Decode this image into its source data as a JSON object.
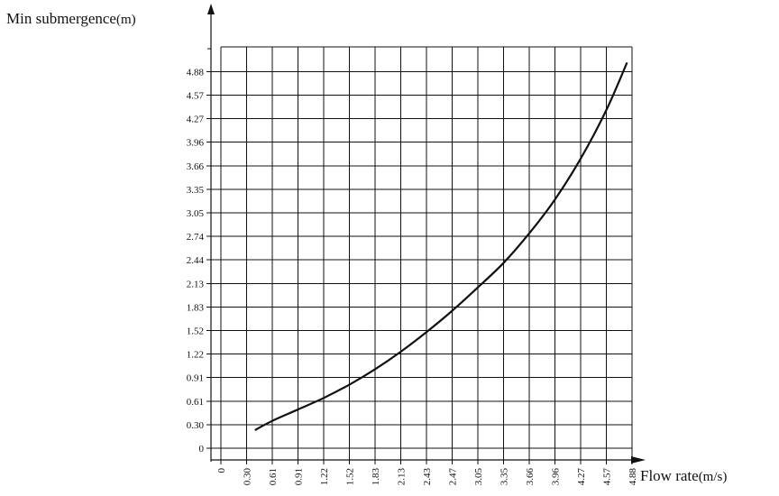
{
  "chart_data": {
    "type": "line",
    "title": "",
    "xlabel": "Flow rate",
    "xunit": "(m/s)",
    "ylabel": "Min submergence",
    "yunit": "(m)",
    "x_ticks": [
      "0",
      "0.30",
      "0.61",
      "0.91",
      "1.22",
      "1.52",
      "1.83",
      "2.13",
      "2.43",
      "2.47",
      "3.05",
      "3.35",
      "3.66",
      "3.96",
      "4.27",
      "4.57",
      "4.88"
    ],
    "y_ticks": [
      "0",
      "0.30",
      "0.61",
      "0.91",
      "1.22",
      "1.52",
      "1.83",
      "2.13",
      "2.44",
      "2.74",
      "3.05",
      "3.35",
      "3.66",
      "3.96",
      "4.27",
      "4.57",
      "4.88"
    ],
    "grid": true,
    "series": [
      {
        "x": [
          0.4,
          0.61,
          0.91,
          1.22,
          1.52,
          1.83,
          2.13,
          2.43,
          2.47,
          3.05,
          3.35,
          3.66,
          3.96,
          4.27,
          4.57,
          4.82
        ],
        "y": [
          0.23,
          0.35,
          0.5,
          0.65,
          0.82,
          1.02,
          1.25,
          1.5,
          1.78,
          2.08,
          2.4,
          2.78,
          3.22,
          3.75,
          4.38,
          5.0
        ]
      }
    ],
    "curve_color": "#111111"
  }
}
